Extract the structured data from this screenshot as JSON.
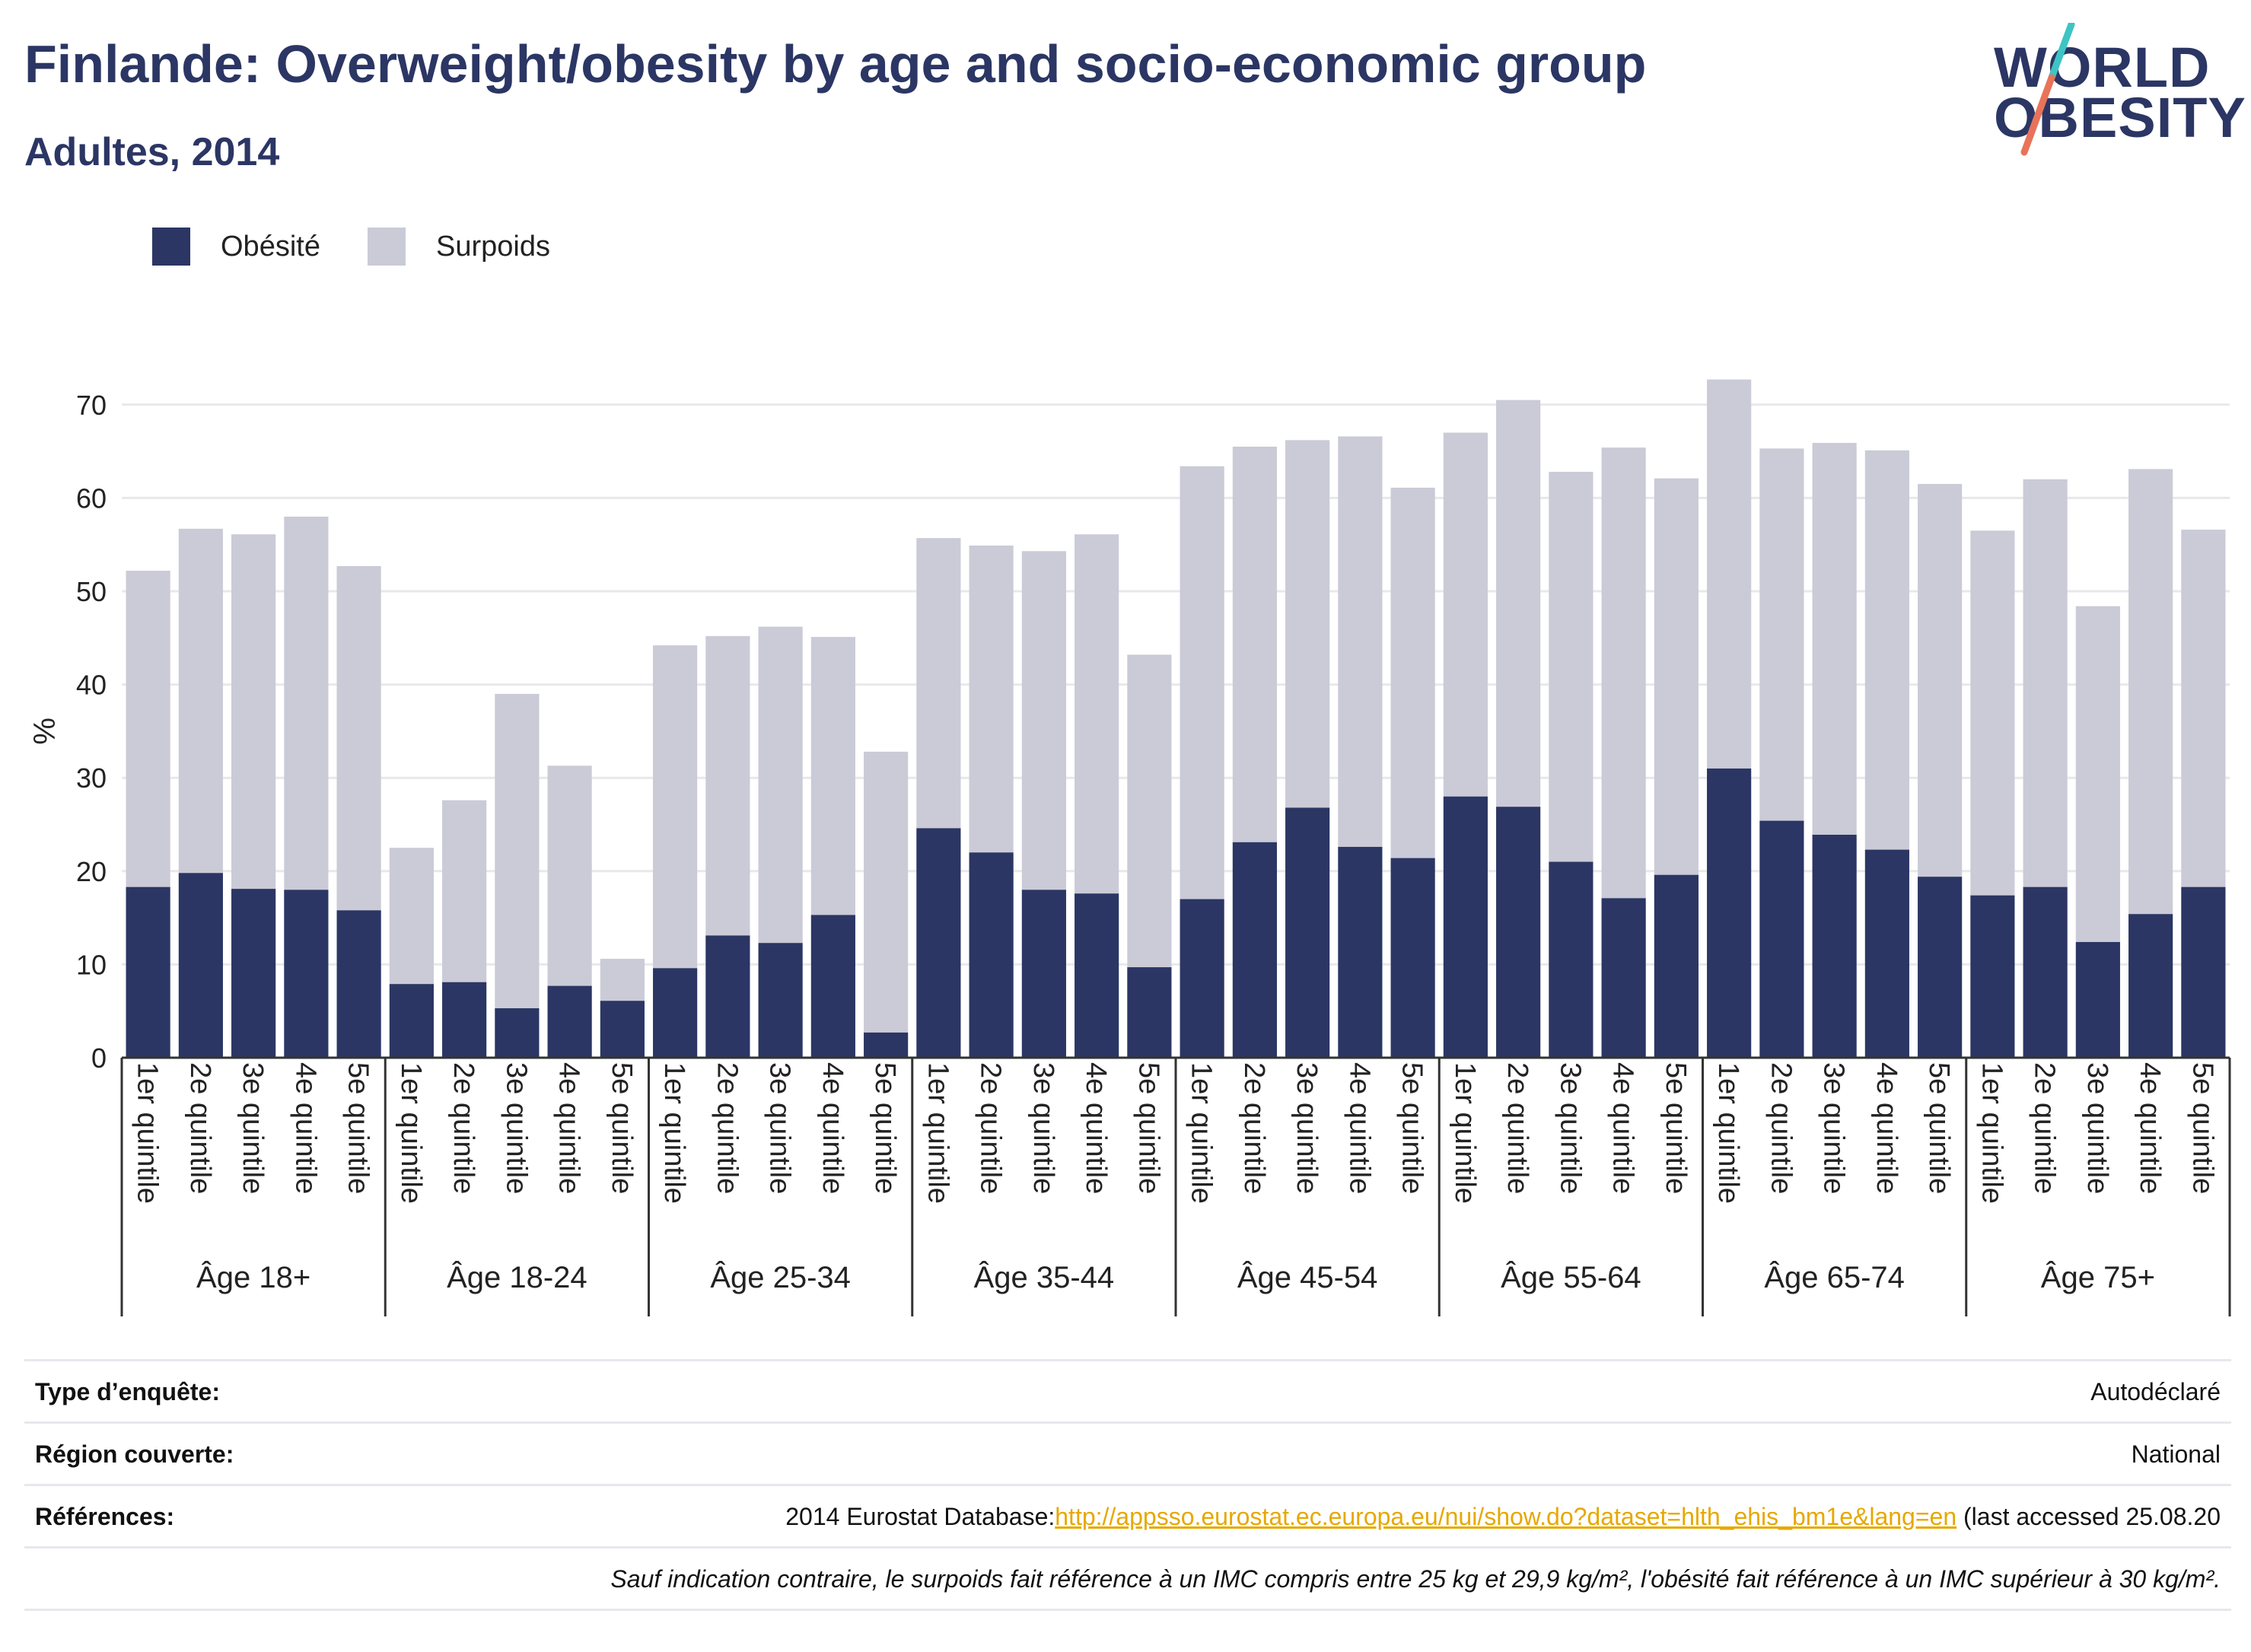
{
  "header": {
    "title": "Finlande: Overweight/obesity by age and socio-economic group",
    "subtitle": "Adultes, 2014"
  },
  "logo": {
    "line1": "WORLD",
    "line2": "OBESITY",
    "colors": {
      "text": "#2b3664",
      "slash_top": "#3ec4c4",
      "slash_bottom": "#e8735a"
    }
  },
  "legend": {
    "items": [
      {
        "label": "Obésité",
        "color": "#2b3664"
      },
      {
        "label": "Surpoids",
        "color": "#cacbd7"
      }
    ],
    "placement": "top-left"
  },
  "chart_data": {
    "type": "bar",
    "stacked": true,
    "ylabel": "%",
    "ylim": [
      0,
      75
    ],
    "yticks": [
      0,
      10,
      20,
      30,
      40,
      50,
      60,
      70
    ],
    "grid": true,
    "categories": [
      "1er quintile",
      "2e quintile",
      "3e quintile",
      "4e quintile",
      "5e quintile"
    ],
    "groups": [
      {
        "label": "Âge 18+",
        "obesity": [
          18.3,
          19.8,
          18.1,
          18.0,
          15.8
        ],
        "overweight": [
          33.9,
          36.9,
          38.0,
          40.0,
          36.9
        ]
      },
      {
        "label": "Âge 18-24",
        "obesity": [
          7.9,
          8.1,
          5.3,
          7.7,
          6.1
        ],
        "overweight": [
          14.6,
          19.5,
          33.7,
          23.6,
          4.5
        ]
      },
      {
        "label": "Âge 25-34",
        "obesity": [
          9.6,
          13.1,
          12.3,
          15.3,
          2.7
        ],
        "overweight": [
          34.6,
          32.1,
          33.9,
          29.8,
          30.1
        ]
      },
      {
        "label": "Âge 35-44",
        "obesity": [
          24.6,
          22.0,
          18.0,
          17.6,
          9.7
        ],
        "overweight": [
          31.1,
          32.9,
          36.3,
          38.5,
          33.5
        ]
      },
      {
        "label": "Âge 45-54",
        "obesity": [
          17.0,
          23.1,
          26.8,
          22.6,
          21.4
        ],
        "overweight": [
          46.4,
          42.4,
          39.4,
          44.0,
          39.7
        ]
      },
      {
        "label": "Âge 55-64",
        "obesity": [
          28.0,
          26.9,
          21.0,
          17.1,
          19.6
        ],
        "overweight": [
          39.0,
          43.6,
          41.8,
          48.3,
          42.5
        ]
      },
      {
        "label": "Âge 65-74",
        "obesity": [
          31.0,
          25.4,
          23.9,
          22.3,
          19.4
        ],
        "overweight": [
          41.7,
          39.9,
          42.0,
          42.8,
          42.1
        ]
      },
      {
        "label": "Âge 75+",
        "obesity": [
          17.4,
          18.3,
          12.4,
          15.4,
          18.3
        ],
        "overweight": [
          39.1,
          43.7,
          36.0,
          47.7,
          38.3
        ]
      }
    ]
  },
  "info": {
    "survey_type": {
      "label": "Type d’enquête:",
      "value": "Autodéclaré"
    },
    "region": {
      "label": "Région couverte:",
      "value": "National"
    },
    "references": {
      "label": "Références:",
      "prefix": "2014 Eurostat Database:",
      "link": "http://appsso.eurostat.ec.europa.eu/nui/show.do?dataset=hlth_ehis_bm1e&lang=en",
      "suffix": " (last accessed 25.08.20"
    },
    "note": "Sauf indication contraire, le surpoids fait référence à un IMC compris entre 25 kg et 29,9 kg/m², l'obésité fait référence à un IMC supérieur à 30 kg/m²."
  }
}
